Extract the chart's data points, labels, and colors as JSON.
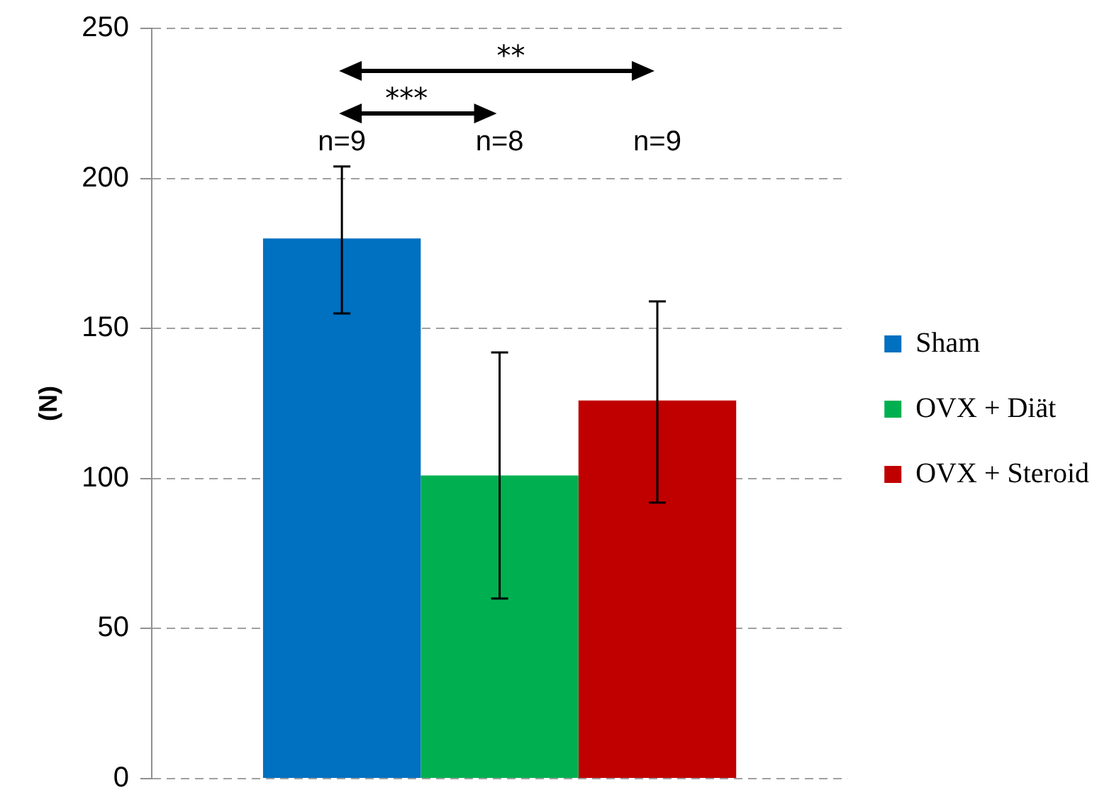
{
  "chart_data": {
    "type": "bar",
    "categories": [
      null
    ],
    "ylabel": "(N)",
    "ylim": [
      0,
      250
    ],
    "yticks": [
      0,
      50,
      100,
      150,
      200,
      250
    ],
    "grid": "y",
    "legend": "right",
    "tick_labels": "y",
    "series": [
      {
        "name": "Sham",
        "color": "#0070c0",
        "values": [
          180
        ],
        "errors": [
          [
            155,
            204
          ]
        ]
      },
      {
        "name": "OVX + Diät",
        "color": "#00b050",
        "values": [
          101
        ],
        "errors": [
          [
            60,
            142
          ]
        ]
      },
      {
        "name": "OVX + Steroid",
        "color": "#c00000",
        "values": [
          126
        ],
        "errors": [
          [
            92,
            159
          ]
        ]
      }
    ],
    "annotations": [
      "n=9",
      "n=8",
      "n=9",
      "***",
      "**"
    ]
  }
}
